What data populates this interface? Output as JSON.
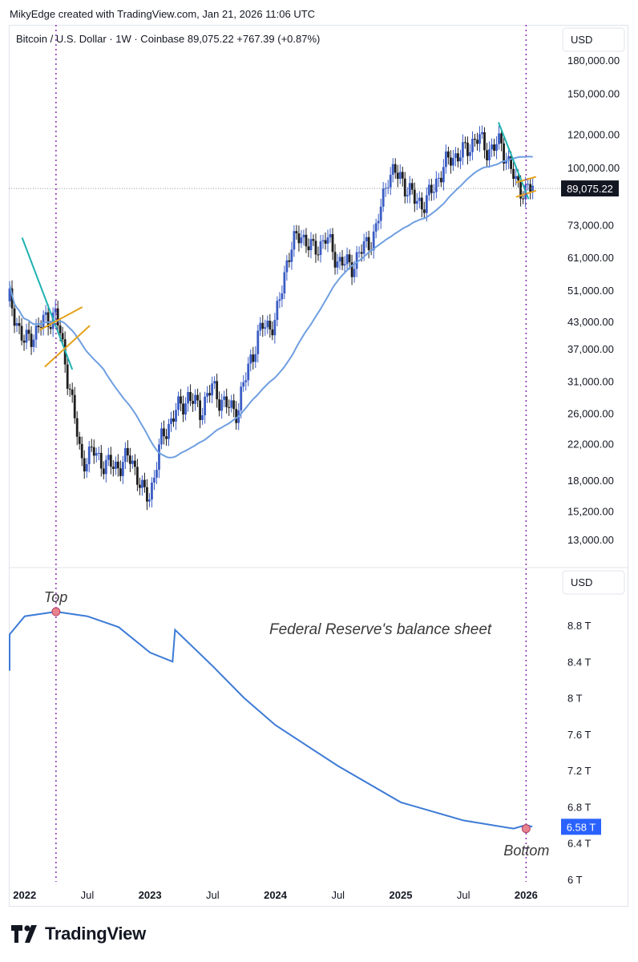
{
  "header": {
    "credit": "MikyEdge created with TradingView.com, Jan 21, 2026 11:06 UTC"
  },
  "brand": {
    "name": "TradingView",
    "icon": "tradingview-logo-icon"
  },
  "colors": {
    "candle_up": "#3a5cc4",
    "candle_down": "#1e1e1e",
    "ma_line": "#6f9fe0",
    "fed_line": "#3d7bd6",
    "teal_trend": "#1fb2b2",
    "orange_channel": "#e4a21a",
    "marker_vline": "#8a2bb0",
    "price_label_bg": "#131722",
    "fed_label_bg": "#2962ff"
  },
  "chart_data": [
    {
      "type": "candlestick",
      "legend": "Bitcoin / U.S. Dollar · 1W · Coinbase",
      "last_price": "89,075.22",
      "change": "+767.39 (+0.87%)",
      "currency_button": "USD",
      "current_price_label": "89,075.22",
      "y_scale": "log",
      "y_ticks": [
        "180,000.00",
        "150,000.00",
        "120,000.00",
        "100,000.00",
        "89,000.00",
        "73,000.00",
        "61,000.00",
        "51,000.00",
        "43,000.00",
        "37,000.00",
        "31,000.00",
        "26,000.00",
        "22,000.00",
        "18,000.00",
        "15,200.00",
        "13,000.00"
      ],
      "x": [
        2021.88,
        2022.0,
        2022.12,
        2022.25,
        2022.36,
        2022.45,
        2022.55,
        2022.65,
        2022.75,
        2022.85,
        2022.95,
        2023.0,
        2023.1,
        2023.2,
        2023.3,
        2023.4,
        2023.5,
        2023.6,
        2023.7,
        2023.8,
        2023.9,
        2024.0,
        2024.1,
        2024.2,
        2024.3,
        2024.4,
        2024.5,
        2024.6,
        2024.7,
        2024.8,
        2024.9,
        2025.0,
        2025.1,
        2025.2,
        2025.3,
        2025.4,
        2025.5,
        2025.6,
        2025.7,
        2025.8,
        2025.85,
        2025.92,
        2026.0,
        2026.05
      ],
      "close": [
        48000,
        38000,
        42000,
        45000,
        30000,
        20000,
        21000,
        19500,
        19500,
        20500,
        16500,
        16700,
        23000,
        26000,
        28500,
        26500,
        30000,
        27000,
        26500,
        35000,
        42000,
        42500,
        62000,
        70000,
        63000,
        68000,
        60000,
        58000,
        64000,
        70000,
        97000,
        95000,
        84000,
        82000,
        95000,
        106000,
        108000,
        118000,
        110000,
        114000,
        105000,
        91000,
        88000,
        89075
      ]
    },
    {
      "type": "line",
      "legend": "Federal Reserve's balance sheet",
      "currency_button": "USD",
      "current_value_label": "6.58 T",
      "y_ticks": [
        "8.8 T",
        "8.4 T",
        "8 T",
        "7.6 T",
        "7.2 T",
        "6.8 T",
        "6.4 T",
        "6 T"
      ],
      "annotations": [
        "Top",
        "Bottom"
      ],
      "x": [
        2021.5,
        2021.75,
        2022.0,
        2022.25,
        2022.5,
        2022.75,
        2023.0,
        2023.18,
        2023.2,
        2023.5,
        2023.75,
        2024.0,
        2024.5,
        2025.0,
        2025.5,
        2025.9,
        2026.0,
        2026.05
      ],
      "values": [
        8.3,
        8.7,
        8.9,
        8.95,
        8.9,
        8.78,
        8.5,
        8.4,
        8.75,
        8.35,
        8.0,
        7.7,
        7.25,
        6.85,
        6.65,
        6.56,
        6.6,
        6.58
      ]
    }
  ],
  "x_axis": {
    "labels": [
      "2022",
      "Jul",
      "2023",
      "Jul",
      "2024",
      "Jul",
      "2025",
      "Jul",
      "2026"
    ]
  }
}
